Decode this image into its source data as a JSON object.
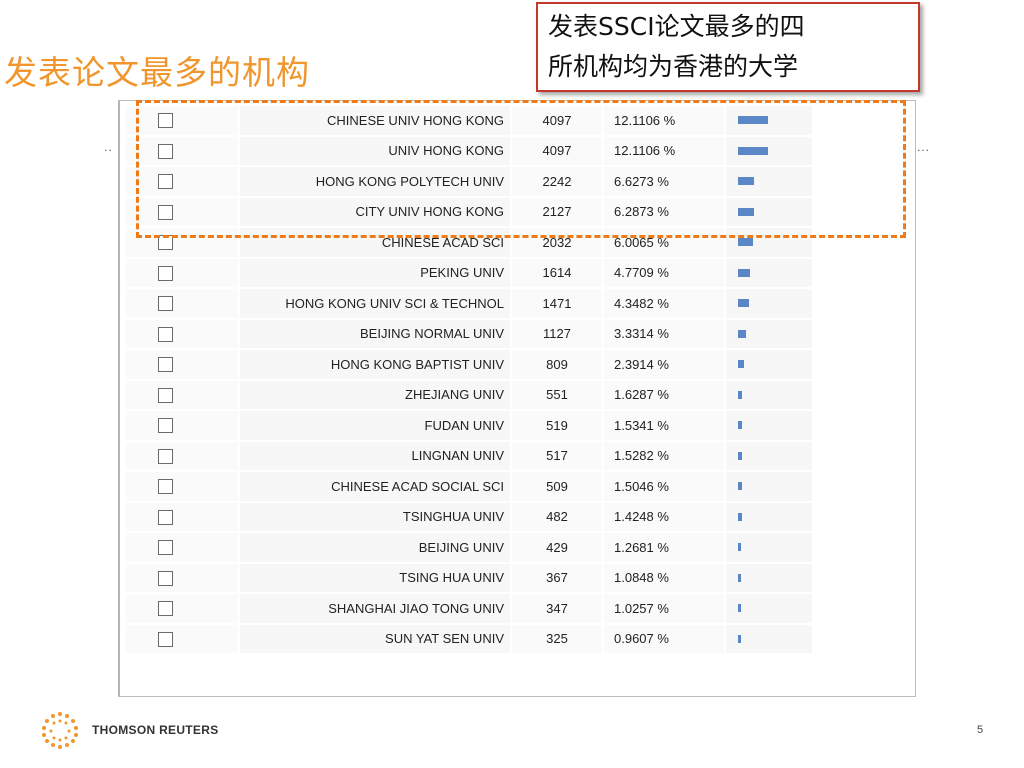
{
  "slide": {
    "title": "发表论文最多的机构",
    "callout_line1": "发表SSCI论文最多的四",
    "callout_line2": "所机构均为香港的大学",
    "left_dots": "..",
    "right_dots": "...",
    "brand": "THOMSON REUTERS",
    "page_number": "5"
  },
  "colors": {
    "title": "#f0962c",
    "highlight_border": "#ef7a1a",
    "callout_border": "#c0392b",
    "bar": "#5b87c7"
  },
  "table": {
    "rows": [
      {
        "name": "CHINESE UNIV HONG KONG",
        "count": "4097",
        "percent": "12.1106 %"
      },
      {
        "name": "UNIV HONG KONG",
        "count": "4097",
        "percent": "12.1106 %"
      },
      {
        "name": "HONG KONG POLYTECH UNIV",
        "count": "2242",
        "percent": "6.6273 %"
      },
      {
        "name": "CITY UNIV HONG KONG",
        "count": "2127",
        "percent": "6.2873 %"
      },
      {
        "name": "CHINESE ACAD SCI",
        "count": "2032",
        "percent": "6.0065 %"
      },
      {
        "name": "PEKING UNIV",
        "count": "1614",
        "percent": "4.7709 %"
      },
      {
        "name": "HONG KONG UNIV SCI & TECHNOL",
        "count": "1471",
        "percent": "4.3482 %"
      },
      {
        "name": "BEIJING NORMAL UNIV",
        "count": "1127",
        "percent": "3.3314 %"
      },
      {
        "name": "HONG KONG BAPTIST UNIV",
        "count": "809",
        "percent": "2.3914 %"
      },
      {
        "name": "ZHEJIANG UNIV",
        "count": "551",
        "percent": "1.6287 %"
      },
      {
        "name": "FUDAN UNIV",
        "count": "519",
        "percent": "1.5341 %"
      },
      {
        "name": "LINGNAN UNIV",
        "count": "517",
        "percent": "1.5282 %"
      },
      {
        "name": "CHINESE ACAD SOCIAL SCI",
        "count": "509",
        "percent": "1.5046 %"
      },
      {
        "name": "TSINGHUA UNIV",
        "count": "482",
        "percent": "1.4248 %"
      },
      {
        "name": "BEIJING UNIV",
        "count": "429",
        "percent": "1.2681 %"
      },
      {
        "name": "TSING HUA UNIV",
        "count": "367",
        "percent": "1.0848 %"
      },
      {
        "name": "SHANGHAI JIAO TONG UNIV",
        "count": "347",
        "percent": "1.0257 %"
      },
      {
        "name": "SUN YAT SEN UNIV",
        "count": "325",
        "percent": "0.9607 %"
      }
    ]
  }
}
